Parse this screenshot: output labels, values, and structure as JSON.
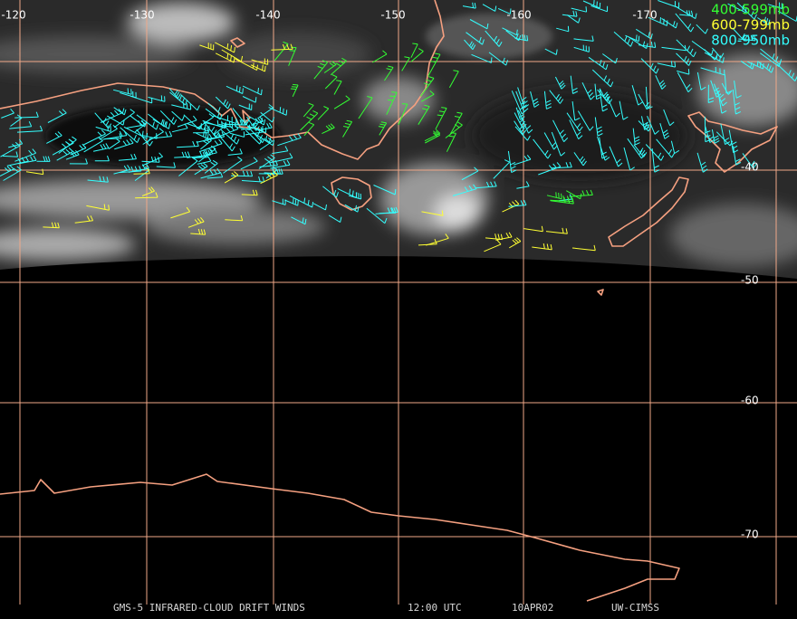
{
  "longitude_labels": [
    "-120",
    "-130",
    "-140",
    "-150",
    "-160",
    "-170"
  ],
  "latitude_labels": [
    "-40",
    "-50",
    "-60",
    "-70"
  ],
  "legend": [
    {
      "label": "400-599mb",
      "color": "#33ff33"
    },
    {
      "label": "600-799mb",
      "color": "#ffff33"
    },
    {
      "label": "800-950mb",
      "color": "#33ffff"
    }
  ],
  "footer": [
    "GMS-5 INFRARED-CLOUD DRIFT WINDS",
    "12:00 UTC",
    "10APR02",
    "UW-CIMSS"
  ]
}
